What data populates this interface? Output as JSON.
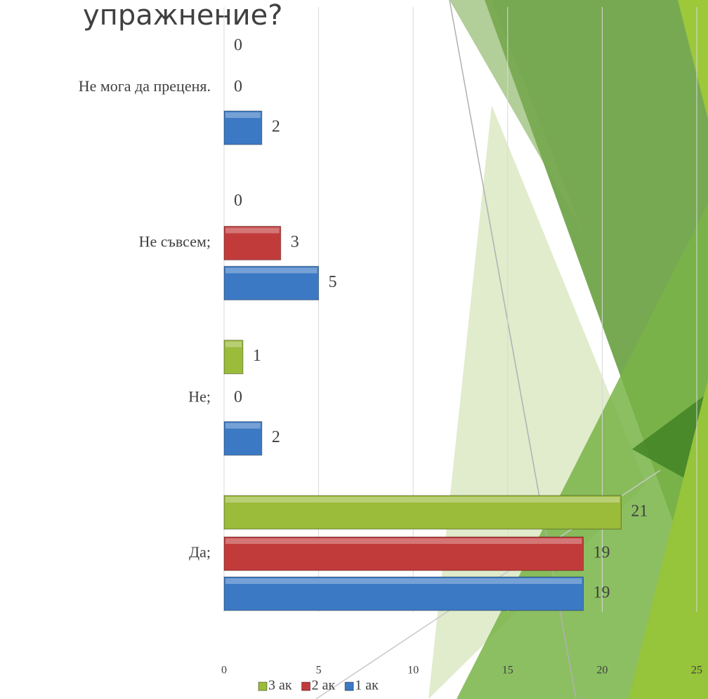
{
  "chart_data": {
    "type": "bar",
    "orientation": "horizontal",
    "title": "упражнение?",
    "categories": [
      "Да;",
      "Не;",
      "Не съвсем;",
      "Не мога да преценя."
    ],
    "series": [
      {
        "name": "1 ак",
        "color": "#3c79c4",
        "values": [
          19,
          2,
          5,
          2
        ]
      },
      {
        "name": "2 ак",
        "color": "#c23b3b",
        "values": [
          19,
          0,
          3,
          0
        ]
      },
      {
        "name": "3 ак",
        "color": "#9bbb3b",
        "values": [
          21,
          1,
          0,
          0
        ]
      }
    ],
    "xlim": [
      0,
      25
    ],
    "xticks": [
      0,
      5,
      10,
      15,
      20,
      25
    ],
    "grid": true,
    "legend": "bottom"
  }
}
